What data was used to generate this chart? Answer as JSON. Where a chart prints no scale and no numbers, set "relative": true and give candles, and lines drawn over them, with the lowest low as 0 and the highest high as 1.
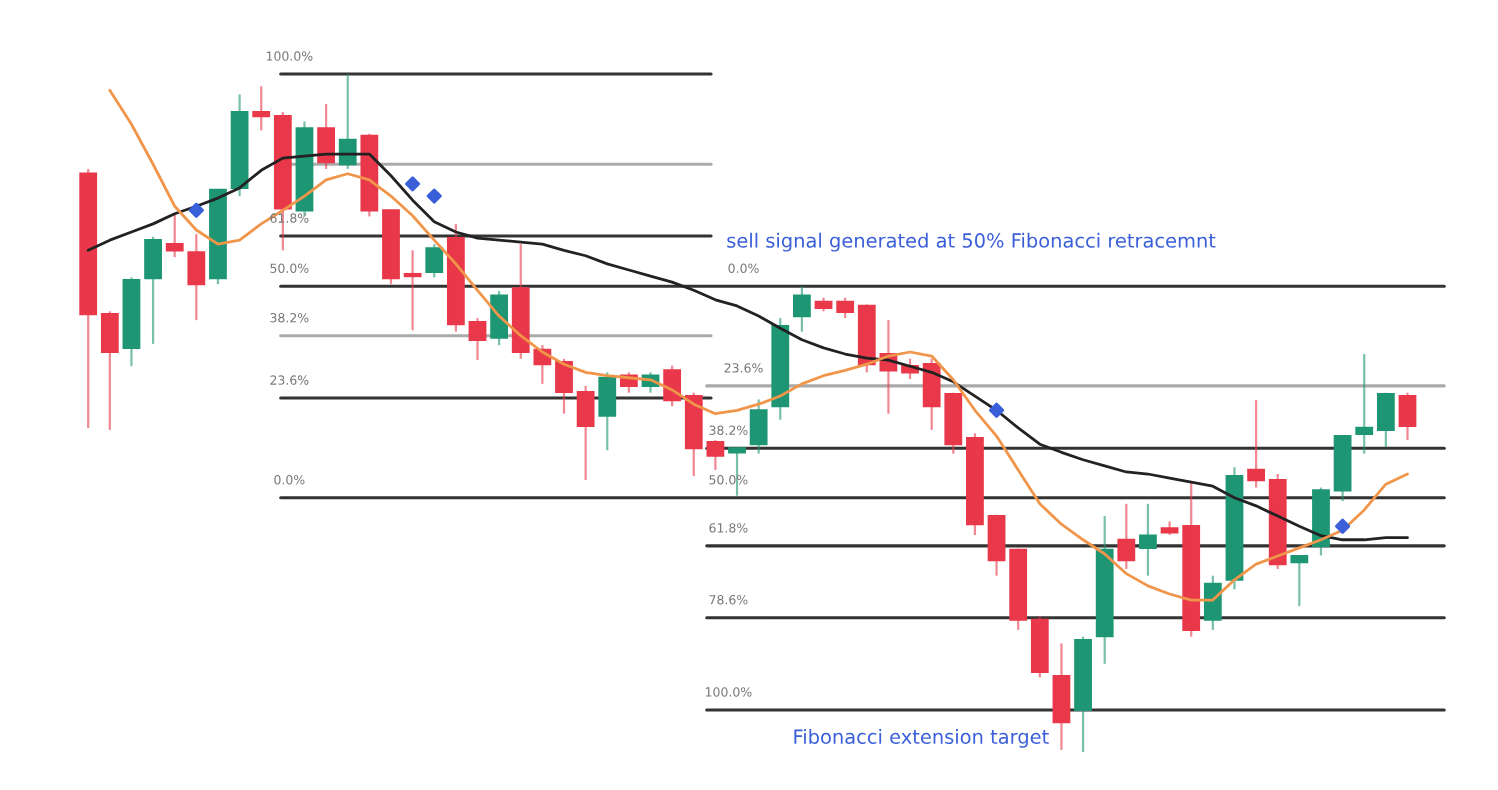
{
  "chart_data": {
    "type": "candlestick",
    "relative": true,
    "categories": [
      null,
      null,
      null,
      null,
      null,
      null,
      null,
      null,
      null,
      null,
      null,
      null,
      null,
      null,
      null,
      null,
      null,
      null,
      null,
      null,
      null,
      null,
      null,
      null,
      null,
      null,
      null,
      null,
      null,
      null,
      null,
      null,
      null,
      null,
      null,
      null,
      null,
      null,
      null,
      null,
      null,
      null,
      null,
      null,
      null,
      null,
      null,
      null,
      null,
      null,
      null,
      null,
      null,
      null,
      null,
      null,
      null,
      null,
      null,
      null,
      null,
      null
    ],
    "ohlc": [
      [
        0.853,
        0.86,
        0.478,
        0.646
      ],
      [
        0.646,
        0.65,
        0.475,
        0.59
      ],
      [
        0.596,
        0.7,
        0.569,
        0.696
      ],
      [
        0.699,
        0.76,
        0.602,
        0.755
      ],
      [
        0.749,
        0.794,
        0.73,
        0.74
      ],
      [
        0.737,
        0.764,
        0.637,
        0.69
      ],
      [
        0.699,
        0.83,
        0.69,
        0.829
      ],
      [
        0.832,
        0.97,
        0.82,
        0.944
      ],
      [
        0.944,
        0.982,
        0.917,
        0.938
      ],
      [
        0.938,
        0.944,
        0.74,
        0.802
      ],
      [
        0.799,
        0.93,
        0.791,
        0.92
      ],
      [
        0.92,
        0.956,
        0.86,
        0.87
      ],
      [
        0.867,
        1.0,
        0.86,
        0.903
      ],
      [
        0.909,
        0.912,
        0.79,
        0.799
      ],
      [
        0.799,
        0.8,
        0.69,
        0.699
      ],
      [
        0.705,
        0.74,
        0.622,
        0.702
      ],
      [
        0.708,
        0.749,
        0.7,
        0.743
      ],
      [
        0.758,
        0.779,
        0.62,
        0.631
      ],
      [
        0.634,
        0.64,
        0.578,
        0.608
      ],
      [
        0.611,
        0.68,
        0.6,
        0.673
      ],
      [
        0.684,
        0.749,
        0.58,
        0.59
      ],
      [
        0.593,
        0.6,
        0.543,
        0.572
      ],
      [
        0.575,
        0.58,
        0.499,
        0.531
      ],
      [
        0.531,
        0.54,
        0.401,
        0.481
      ],
      [
        0.496,
        0.56,
        0.445,
        0.552
      ],
      [
        0.555,
        0.56,
        0.53,
        0.54
      ],
      [
        0.54,
        0.56,
        0.53,
        0.555
      ],
      [
        0.563,
        0.57,
        0.51,
        0.519
      ],
      [
        0.525,
        0.53,
        0.407,
        0.448
      ],
      [
        0.457,
        0.46,
        0.416,
        0.437
      ],
      [
        0.442,
        0.45,
        0.378,
        0.448
      ],
      [
        0.454,
        0.52,
        0.44,
        0.504
      ],
      [
        0.51,
        0.64,
        0.49,
        0.628
      ],
      [
        0.643,
        0.687,
        0.62,
        0.673
      ],
      [
        0.664,
        0.67,
        0.65,
        0.655
      ],
      [
        0.664,
        0.67,
        0.64,
        0.649
      ],
      [
        0.658,
        0.66,
        0.56,
        0.572
      ],
      [
        0.587,
        0.637,
        0.499,
        0.563
      ],
      [
        0.569,
        0.58,
        0.55,
        0.56
      ],
      [
        0.572,
        0.58,
        0.475,
        0.51
      ],
      [
        0.528,
        0.53,
        0.44,
        0.454
      ],
      [
        0.463,
        0.47,
        0.32,
        0.336
      ],
      [
        0.348,
        0.35,
        0.26,
        0.283
      ],
      [
        0.298,
        0.3,
        0.18,
        0.195
      ],
      [
        0.195,
        0.2,
        0.11,
        0.118
      ],
      [
        0.112,
        0.16,
        0.003,
        0.044
      ],
      [
        0.062,
        0.17,
        0.0,
        0.165
      ],
      [
        0.171,
        0.348,
        0.13,
        0.298
      ],
      [
        0.313,
        0.366,
        0.27,
        0.283
      ],
      [
        0.301,
        0.366,
        0.26,
        0.319
      ],
      [
        0.33,
        0.34,
        0.32,
        0.324
      ],
      [
        0.333,
        0.4,
        0.17,
        0.18
      ],
      [
        0.195,
        0.26,
        0.18,
        0.248
      ],
      [
        0.254,
        0.42,
        0.24,
        0.407
      ],
      [
        0.416,
        0.519,
        0.39,
        0.401
      ],
      [
        0.401,
        0.41,
        0.27,
        0.277
      ],
      [
        0.28,
        0.29,
        0.215,
        0.289
      ],
      [
        0.304,
        0.39,
        0.29,
        0.386
      ],
      [
        0.386,
        0.466,
        0.37,
        0.466
      ],
      [
        0.469,
        0.587,
        0.44,
        0.478
      ],
      [
        0.475,
        0.53,
        0.45,
        0.528
      ],
      [
        0.525,
        0.53,
        0.46,
        0.481
      ]
    ],
    "colors": [
      "#e8384a",
      "#e8384a",
      "#1e9674",
      "#1e9674",
      "#e8384a",
      "#e8384a",
      "#1e9674",
      "#1e9674",
      "#e8384a",
      "#e8384a",
      "#1e9674",
      "#e8384a",
      "#1e9674",
      "#e8384a",
      "#e8384a",
      "#e8384a",
      "#1e9674",
      "#e8384a",
      "#e8384a",
      "#1e9674",
      "#e8384a",
      "#e8384a",
      "#e8384a",
      "#e8384a",
      "#1e9674",
      "#e8384a",
      "#1e9674",
      "#e8384a",
      "#e8384a",
      "#e8384a",
      "#1e9674",
      "#1e9674",
      "#1e9674",
      "#1e9674",
      "#e8384a",
      "#e8384a",
      "#e8384a",
      "#e8384a",
      "#e8384a",
      "#e8384a",
      "#e8384a",
      "#e8384a",
      "#e8384a",
      "#e8384a",
      "#e8384a",
      "#e8384a",
      "#1e9674",
      "#1e9674",
      "#e8384a",
      "#1e9674",
      "#e8384a",
      "#e8384a",
      "#1e9674",
      "#1e9674",
      "#e8384a",
      "#e8384a",
      "#1e9674",
      "#1e9674",
      "#1e9674",
      "#1e9674",
      "#1e9674",
      "#e8384a"
    ],
    "series": [
      {
        "type": "line",
        "color": "#222222",
        "values": [
          0.74,
          0.755,
          0.767,
          0.779,
          0.794,
          0.805,
          0.817,
          0.832,
          0.858,
          0.876,
          0.879,
          0.882,
          0.882,
          0.882,
          0.85,
          0.814,
          0.782,
          0.767,
          0.758,
          0.755,
          0.752,
          0.749,
          0.74,
          0.732,
          0.72,
          0.711,
          0.702,
          0.693,
          0.681,
          0.667,
          0.658,
          0.643,
          0.625,
          0.608,
          0.596,
          0.587,
          0.581,
          0.578,
          0.569,
          0.56,
          0.546,
          0.525,
          0.504,
          0.478,
          0.454,
          0.442,
          0.431,
          0.422,
          0.413,
          0.41,
          0.404,
          0.398,
          0.392,
          0.375,
          0.363,
          0.348,
          0.333,
          0.319,
          0.313,
          0.313,
          0.316,
          0.316
        ]
      },
      {
        "type": "line",
        "color": "#f0954a",
        "values": [
          null,
          0.976,
          0.926,
          0.867,
          0.805,
          0.77,
          0.749,
          0.755,
          0.779,
          0.799,
          0.82,
          0.844,
          0.853,
          0.844,
          0.82,
          0.791,
          0.755,
          0.72,
          0.681,
          0.643,
          0.614,
          0.59,
          0.572,
          0.56,
          0.555,
          0.552,
          0.549,
          0.534,
          0.513,
          0.499,
          0.504,
          0.513,
          0.525,
          0.543,
          0.555,
          0.563,
          0.572,
          0.584,
          0.59,
          0.584,
          0.549,
          0.504,
          0.466,
          0.416,
          0.366,
          0.336,
          0.313,
          0.292,
          0.263,
          0.245,
          0.233,
          0.224,
          0.224,
          0.254,
          0.277,
          0.289,
          0.301,
          0.313,
          0.327,
          0.357,
          0.395,
          0.41
        ]
      },
      {
        "type": "scatter",
        "color": "#3a5fd9",
        "marker": "diamond",
        "values": [
          null,
          null,
          null,
          null,
          null,
          0.799,
          null,
          null,
          null,
          null,
          null,
          null,
          null,
          null,
          null,
          0.838,
          0.82,
          null,
          null,
          null,
          null,
          null,
          null,
          null,
          null,
          null,
          null,
          null,
          null,
          null,
          null,
          null,
          null,
          null,
          null,
          null,
          null,
          null,
          null,
          null,
          null,
          null,
          0.504,
          null,
          null,
          null,
          null,
          null,
          null,
          null,
          null,
          null,
          null,
          null,
          null,
          null,
          null,
          null,
          0.333,
          null,
          null,
          null
        ]
      }
    ],
    "ref_lines": [
      {
        "axis": "y",
        "value": 1.0,
        "color": "#333333"
      },
      {
        "axis": "y",
        "value": 0.867,
        "color": "#aaaaaa"
      },
      {
        "axis": "y",
        "value": 0.761,
        "color": "#333333"
      },
      {
        "axis": "y",
        "value": 0.687,
        "color": "#333333"
      },
      {
        "axis": "y",
        "value": 0.614,
        "color": "#aaaaaa"
      },
      {
        "axis": "y",
        "value": 0.54,
        "color": "#aaaaaa"
      },
      {
        "axis": "y",
        "value": 0.522,
        "color": "#333333"
      },
      {
        "axis": "y",
        "value": 0.448,
        "color": "#333333"
      },
      {
        "axis": "y",
        "value": 0.375,
        "color": "#333333"
      },
      {
        "axis": "y",
        "value": 0.304,
        "color": "#333333"
      },
      {
        "axis": "y",
        "value": 0.198,
        "color": "#333333"
      },
      {
        "axis": "y",
        "value": 0.062,
        "color": "#333333"
      }
    ],
    "annotations": [
      {
        "text": "100.0%",
        "y": 1.0
      },
      {
        "text": "61.8%",
        "y": 0.761
      },
      {
        "text": "50.0%",
        "y": 0.687
      },
      {
        "text": "38.2%",
        "y": 0.614
      },
      {
        "text": "23.6%",
        "y": 0.522
      },
      {
        "text": "0.0%",
        "y": 0.375
      },
      {
        "text": "0.0%",
        "y": 0.687
      },
      {
        "text": "23.6%",
        "y": 0.54
      },
      {
        "text": "38.2%",
        "y": 0.448
      },
      {
        "text": "50.0%",
        "y": 0.375
      },
      {
        "text": "61.8%",
        "y": 0.304
      },
      {
        "text": "78.6%",
        "y": 0.198
      },
      {
        "text": "100.0%",
        "y": 0.062
      },
      "sell signal generated at 50% Fibonacci retracemnt",
      "Fibonacci extension target"
    ]
  }
}
